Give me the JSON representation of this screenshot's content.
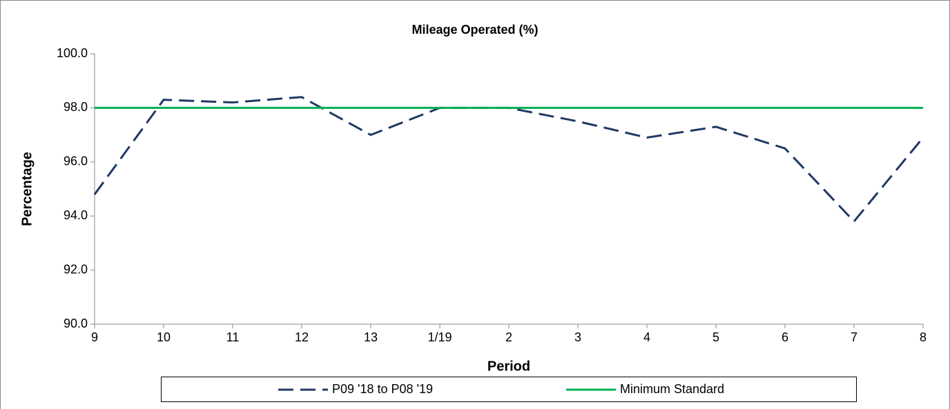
{
  "chart_data": {
    "type": "line",
    "title": "Mileage Operated (%)",
    "x_label": "Period",
    "y_label": "Percentage",
    "categories": [
      "9",
      "10",
      "11",
      "12",
      "13",
      "1/19",
      "2",
      "3",
      "4",
      "5",
      "6",
      "7",
      "8"
    ],
    "series": [
      {
        "name": "P09 '18 to P08 '19",
        "color": "#1f3864",
        "dashed": true,
        "values": [
          94.8,
          98.3,
          98.2,
          98.4,
          97.0,
          98.0,
          98.0,
          97.5,
          96.9,
          97.3,
          96.5,
          93.8,
          96.9
        ]
      },
      {
        "name": "Minimum Standard",
        "color": "#00b050",
        "dashed": false,
        "values": [
          98.0,
          98.0,
          98.0,
          98.0,
          98.0,
          98.0,
          98.0,
          98.0,
          98.0,
          98.0,
          98.0,
          98.0,
          98.0
        ]
      }
    ],
    "ylim": [
      90,
      100
    ],
    "yticks": [
      {
        "value": 90,
        "label": "90.0"
      },
      {
        "value": 92,
        "label": "92.0"
      },
      {
        "value": 94,
        "label": "94.0"
      },
      {
        "value": 96,
        "label": "96.0"
      },
      {
        "value": 98,
        "label": "98.0"
      },
      {
        "value": 100,
        "label": "100.0"
      }
    ],
    "legend": "bottom"
  }
}
